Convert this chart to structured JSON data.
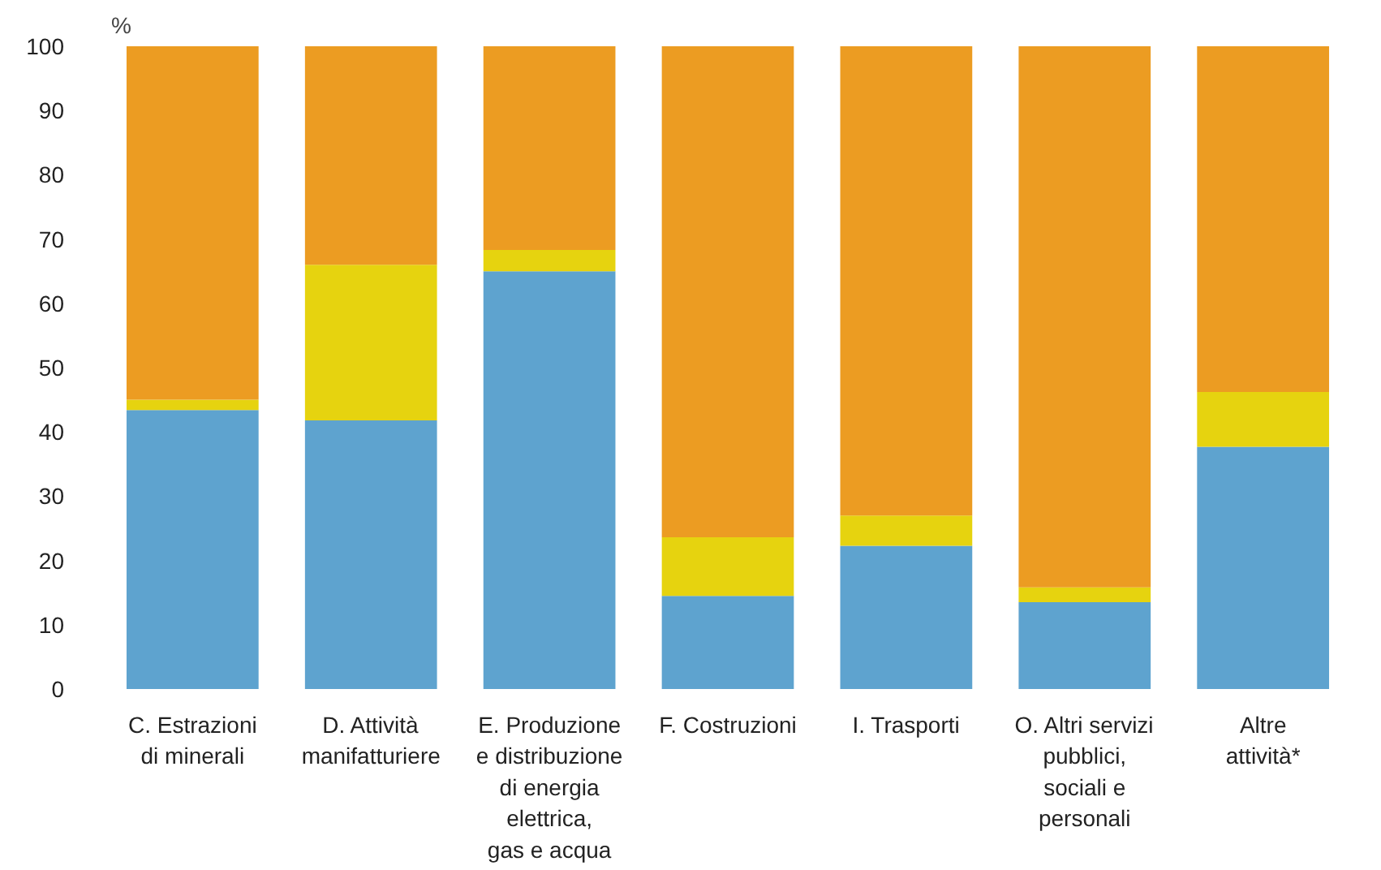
{
  "chart_data": {
    "type": "bar",
    "stacked": true,
    "ylabel": "%",
    "categories": [
      "C. Estrazioni\ndi minerali",
      "D. Attività\nmanifatturiere",
      "E. Produzione\ne distribuzione\ndi energia\nelettrica,\ngas e acqua",
      "F. Costruzioni",
      "I. Trasporti",
      "O. Altri servizi\npubblici,\nsociali e\npersonali",
      "Altre\nattività*"
    ],
    "series": [
      {
        "color": "#5ea3cf",
        "values": [
          43.4,
          41.8,
          65,
          14.5,
          22.3,
          13.5,
          37.7
        ]
      },
      {
        "color": "#e6d30f",
        "values": [
          1.6,
          24.2,
          3.3,
          9.1,
          4.7,
          2.3,
          8.5
        ]
      },
      {
        "color": "#ec9c22",
        "values": [
          55,
          34,
          31.7,
          76.4,
          73,
          84.2,
          53.8
        ]
      }
    ],
    "ylim": [
      0,
      100
    ],
    "yticks": [
      0,
      10,
      20,
      30,
      40,
      50,
      60,
      70,
      80,
      90,
      100
    ],
    "grid": false
  }
}
